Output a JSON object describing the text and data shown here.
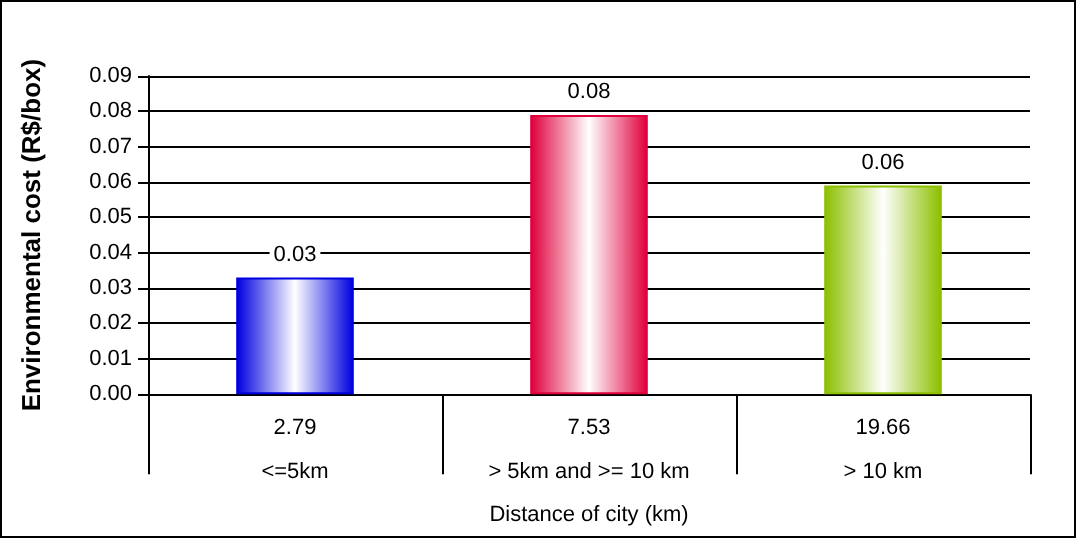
{
  "chart_data": {
    "type": "bar",
    "xlabel": "Distance of city (km)",
    "ylabel": "Environmental cost (R$/box)",
    "categories": [
      "2.79\n<=5km",
      "7.53\n> 5km and >= 10 km",
      "19.66\n> 10 km"
    ],
    "values": [
      0.033,
      0.079,
      0.059
    ],
    "value_labels": [
      "0.03",
      "0.08",
      "0.06"
    ],
    "colors": [
      "#0000e0",
      "#e0003c",
      "#8cc000"
    ],
    "ylim": [
      0,
      0.09
    ],
    "yticks": [
      {
        "value": 0,
        "label": "0.00"
      },
      0.01,
      0.02,
      0.03,
      0.04,
      0.05,
      0.06,
      0.07,
      0.08,
      0.09
    ],
    "grid": "y"
  }
}
